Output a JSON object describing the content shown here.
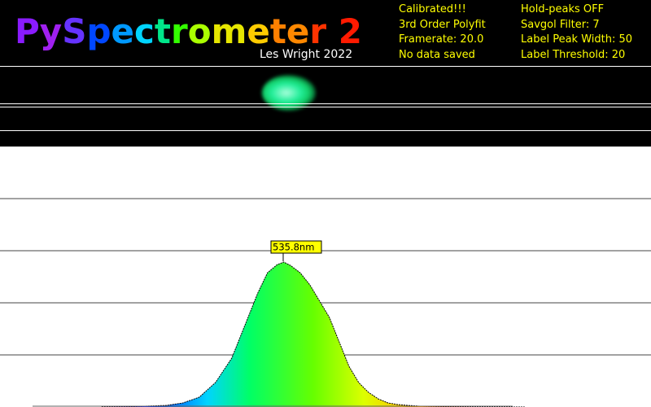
{
  "header": {
    "title": "PySpectrometer 2",
    "author": "Les Wright 2022",
    "status_left": [
      "Calibrated!!!",
      "3rd Order Polyfit",
      "Framerate: 20.0",
      "No data saved"
    ],
    "status_right": [
      "Hold-peaks OFF",
      "Savgol Filter: 7",
      "Label Peak Width: 50",
      "Label Threshold: 20"
    ]
  },
  "colors": {
    "status_text": "#ffff00",
    "background": "#000000",
    "graph_background": "#ffffff",
    "peak_label_bg": "#ffff00"
  },
  "chart_data": {
    "type": "area",
    "xlabel": "",
    "ylabel": "",
    "gridlines": true,
    "x_unit": "nm",
    "peaks": [
      {
        "wavelength": 535.8,
        "label": "535.8nm"
      }
    ],
    "series": [
      {
        "x": [
          480,
          490,
          500,
          505,
          510,
          515,
          520,
          525,
          528,
          531,
          534,
          536,
          538,
          541,
          544,
          547,
          550,
          553,
          556,
          559,
          562,
          565,
          568,
          571,
          574,
          578,
          585,
          595,
          610
        ],
        "values": [
          0,
          0.5,
          2,
          5,
          12,
          30,
          60,
          110,
          140,
          165,
          175,
          178,
          174,
          165,
          150,
          130,
          110,
          80,
          50,
          30,
          18,
          10,
          5,
          3,
          2,
          1,
          0.5,
          0,
          0
        ]
      }
    ]
  }
}
